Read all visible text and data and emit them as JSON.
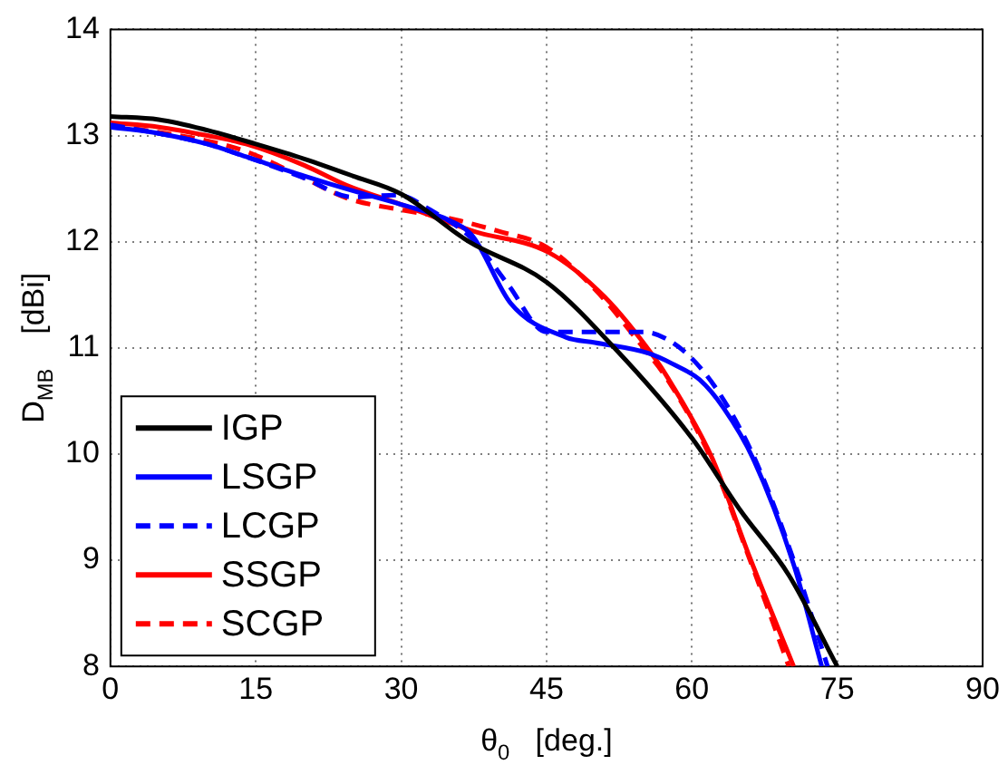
{
  "chart_data": {
    "type": "line",
    "xlabel": "θ$_{0}$   [deg.]",
    "ylabel": "D$_{MB}$    [dBi]",
    "xlim": [
      0,
      90
    ],
    "ylim": [
      8,
      14
    ],
    "xticks": [
      0,
      15,
      30,
      45,
      60,
      75,
      90
    ],
    "yticks": [
      8,
      9,
      10,
      11,
      12,
      13,
      14
    ],
    "grid": true,
    "legend": "bottom left",
    "marker": "none",
    "series": [
      {
        "name": "IGP",
        "color": "#000000",
        "line_style": "solid",
        "x": [
          0,
          5,
          10,
          15,
          20,
          25,
          30,
          37,
          45,
          52,
          60,
          65,
          70,
          75
        ],
        "values": [
          13.18,
          13.15,
          13.05,
          12.92,
          12.78,
          12.62,
          12.45,
          12.0,
          11.62,
          11.0,
          10.15,
          9.47,
          8.86,
          8.0
        ]
      },
      {
        "name": "LSGP",
        "color": "#0000ff",
        "line_style": "solid",
        "x": [
          0,
          5,
          10,
          14,
          20,
          25,
          30,
          35,
          37.4,
          41.3,
          47,
          50,
          55.5,
          58,
          60.8,
          63.3,
          66.3,
          70.5,
          73.4
        ],
        "values": [
          13.08,
          13.02,
          12.92,
          12.8,
          12.62,
          12.48,
          12.35,
          12.2,
          12.05,
          11.42,
          11.1,
          11.05,
          10.95,
          10.85,
          10.7,
          10.43,
          9.96,
          8.96,
          8.0
        ]
      },
      {
        "name": "LCGP",
        "color": "#0000ff",
        "line_style": "dashed",
        "x": [
          0,
          5,
          10,
          14,
          20,
          25,
          29.6,
          33,
          37.4,
          41,
          45,
          50,
          55,
          58,
          61,
          64,
          67,
          70.5,
          74
        ],
        "values": [
          13.1,
          13.02,
          12.92,
          12.8,
          12.6,
          12.42,
          12.44,
          12.3,
          12.02,
          11.6,
          11.15,
          11.15,
          11.15,
          11.05,
          10.8,
          10.4,
          9.85,
          9.0,
          8.0
        ]
      },
      {
        "name": "SSGP",
        "color": "#ff0000",
        "line_style": "solid",
        "x": [
          0,
          5,
          10,
          14,
          20,
          24.4,
          30,
          37.4,
          45.2,
          51,
          56.2,
          57.5,
          62.1,
          66,
          70.5
        ],
        "values": [
          13.12,
          13.08,
          13.0,
          12.92,
          12.72,
          12.53,
          12.35,
          12.1,
          11.9,
          11.48,
          10.9,
          10.72,
          9.96,
          9.02,
          8.0
        ]
      },
      {
        "name": "SCGP",
        "color": "#ff0000",
        "line_style": "dashed",
        "x": [
          0,
          5,
          10,
          14,
          20,
          24.4,
          30,
          35,
          40,
          45,
          50,
          55,
          57.5,
          62,
          66,
          70
        ],
        "values": [
          13.1,
          13.03,
          12.95,
          12.85,
          12.6,
          12.41,
          12.3,
          12.22,
          12.1,
          11.95,
          11.55,
          11.0,
          10.7,
          9.95,
          9.0,
          8.0
        ]
      }
    ]
  }
}
